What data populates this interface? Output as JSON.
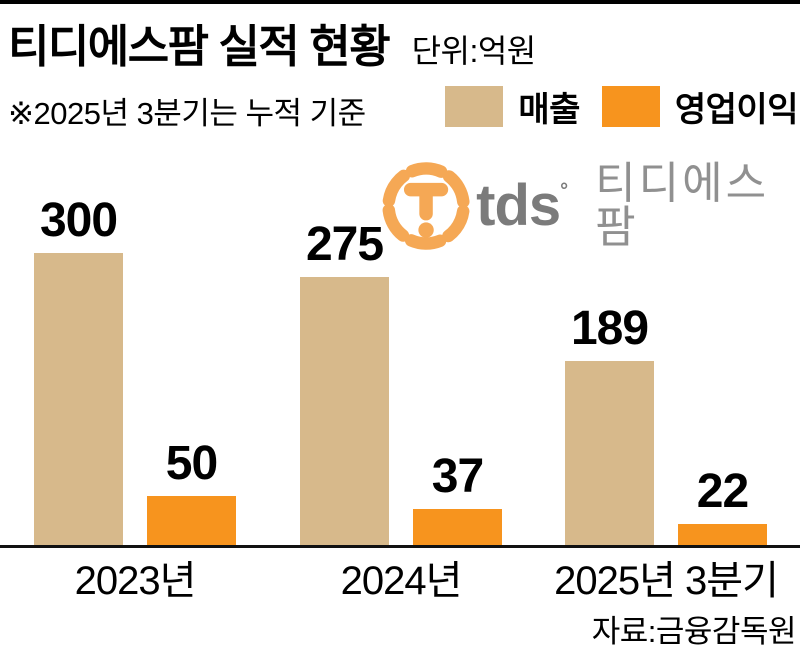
{
  "header": {
    "title": "티디에스팜 실적 현황",
    "unit": "단위:억원",
    "note": "※2025년 3분기는 누적 기준"
  },
  "legend": [
    {
      "label": "매출",
      "color": "#d7b98b"
    },
    {
      "label": "영업이익",
      "color": "#f7941e"
    }
  ],
  "logo": {
    "emblem": "tds-circle-t-emblem",
    "wordmark": "tds",
    "registered_mark": "°",
    "name": "티디에스팜",
    "emblem_color": "#f5a855",
    "wordmark_color": "#7b7b7b",
    "name_color": "#909090"
  },
  "chart_data": {
    "type": "bar",
    "categories": [
      "2023년",
      "2024년",
      "2025년 3분기"
    ],
    "series": [
      {
        "name": "매출",
        "color": "#d7b98b",
        "values": [
          300,
          275,
          189
        ]
      },
      {
        "name": "영업이익",
        "color": "#f7941e",
        "values": [
          50,
          37,
          22
        ]
      }
    ],
    "title": "티디에스팜 실적 현황",
    "unit": "억원",
    "ylim": [
      0,
      300
    ],
    "value_labels": true,
    "grid": false,
    "legend_position": "top-right",
    "baseline_axis_only": true
  },
  "source": "자료:금융감독원",
  "colors": {
    "revenue_tan": "#d7b98b",
    "profit_orange": "#f7941e",
    "logo_orange": "#f5a855",
    "rule_black": "#000000"
  }
}
